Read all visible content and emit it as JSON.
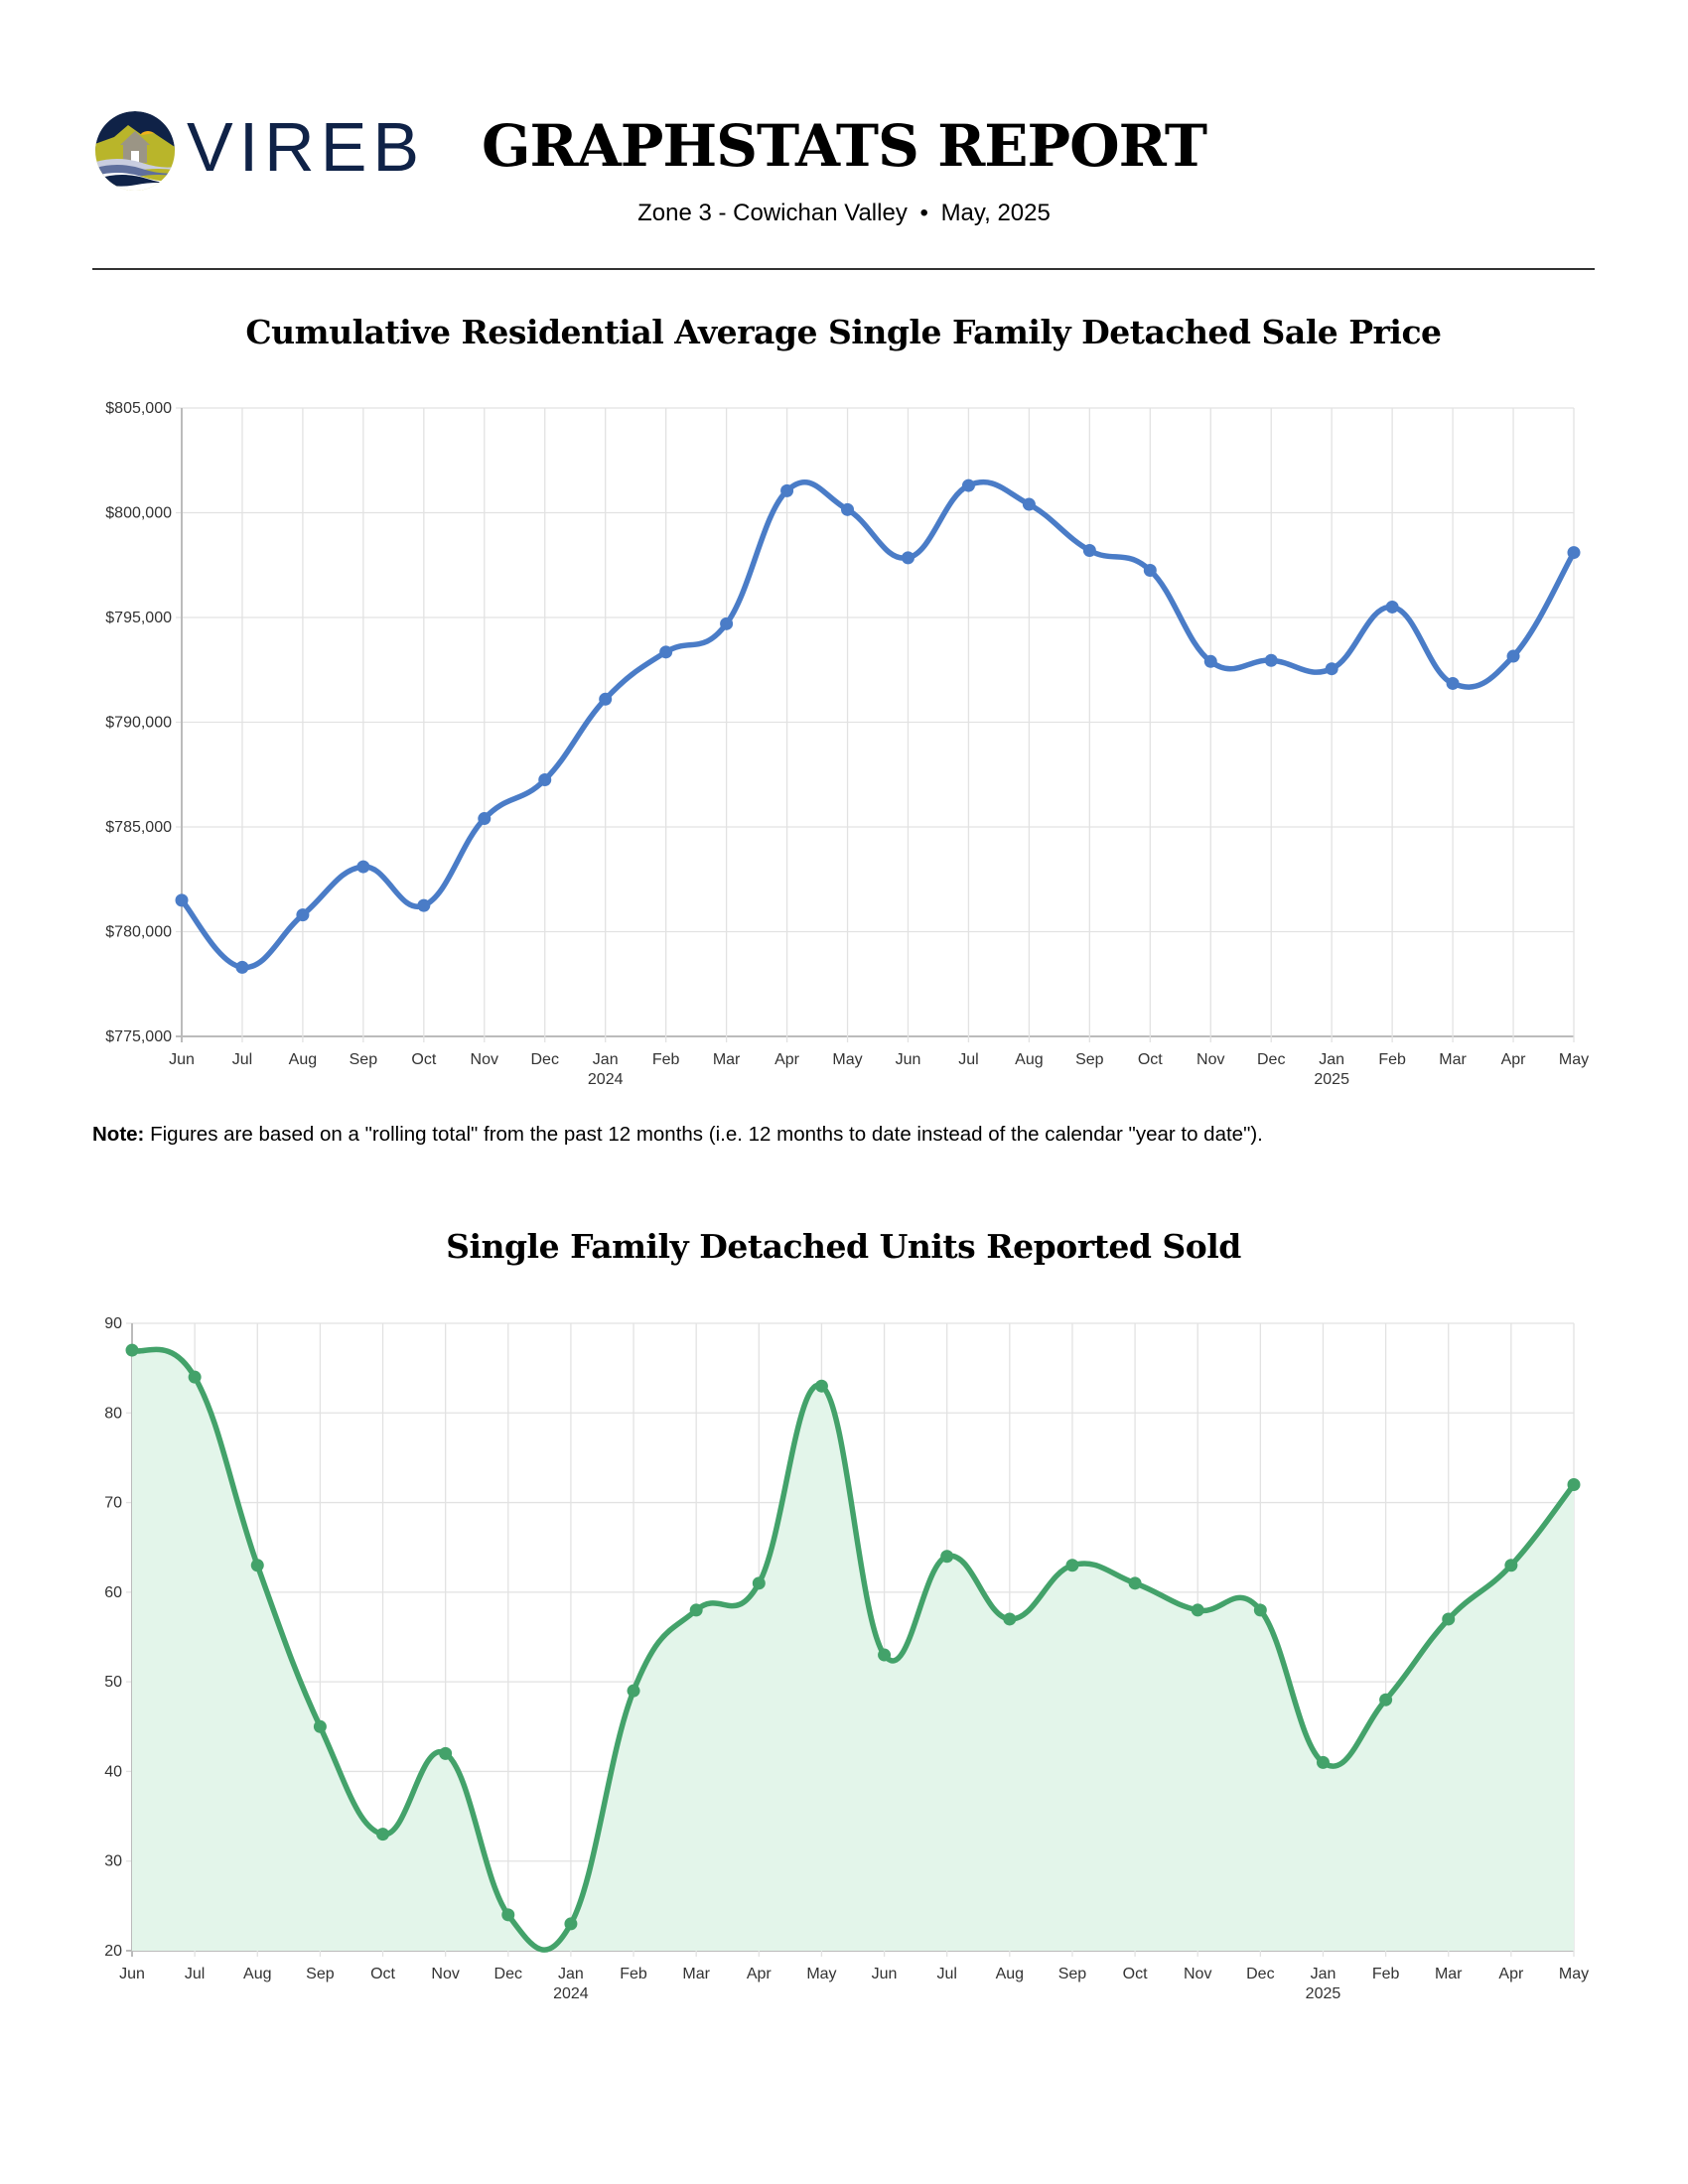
{
  "header": {
    "logo_text": "VIREB",
    "title": "GRAPHSTATS REPORT",
    "subtitle_zone": "Zone 3 - Cowichan Valley",
    "subtitle_sep": "•",
    "subtitle_date": "May, 2025"
  },
  "note": {
    "label": "Note:",
    "text": " Figures are based on a \"rolling total\" from the past 12 months (i.e. 12 months to date instead of the calendar \"year to date\")."
  },
  "colors": {
    "price_line": "#4a7cc7",
    "units_line": "#43a26a",
    "units_fill": "#e3f5ea",
    "grid": "#e2e2e2",
    "axis": "#bbbbbb"
  },
  "chart_data": [
    {
      "type": "line",
      "title": "Cumulative Residential Average Single Family Detached Sale Price",
      "xlabel": "",
      "ylabel": "",
      "x": [
        "Jun",
        "Jul",
        "Aug",
        "Sep",
        "Oct",
        "Nov",
        "Dec",
        "Jan",
        "Feb",
        "Mar",
        "Apr",
        "May",
        "Jun",
        "Jul",
        "Aug",
        "Sep",
        "Oct",
        "Nov",
        "Dec",
        "Jan",
        "Feb",
        "Mar",
        "Apr",
        "May"
      ],
      "x_year_labels": {
        "7": "2024",
        "19": "2025"
      },
      "series": [
        {
          "name": "Average Sale Price",
          "values": [
            781500,
            778300,
            780800,
            783100,
            781250,
            785400,
            787250,
            791100,
            793350,
            794700,
            801050,
            800150,
            797850,
            801300,
            800400,
            798200,
            797250,
            792900,
            792950,
            792550,
            795500,
            791850,
            793150,
            798100
          ]
        }
      ],
      "ylim": [
        775000,
        805000
      ],
      "yticks": [
        775000,
        780000,
        785000,
        790000,
        795000,
        800000,
        805000
      ],
      "ytick_labels": [
        "$775,000",
        "$780,000",
        "$785,000",
        "$790,000",
        "$795,000",
        "$800,000",
        "$805,000"
      ],
      "grid": true,
      "legend": "none"
    },
    {
      "type": "area",
      "title": "Single Family Detached Units Reported Sold",
      "xlabel": "",
      "ylabel": "",
      "x": [
        "Jun",
        "Jul",
        "Aug",
        "Sep",
        "Oct",
        "Nov",
        "Dec",
        "Jan",
        "Feb",
        "Mar",
        "Apr",
        "May",
        "Jun",
        "Jul",
        "Aug",
        "Sep",
        "Oct",
        "Nov",
        "Dec",
        "Jan",
        "Feb",
        "Mar",
        "Apr",
        "May"
      ],
      "x_year_labels": {
        "7": "2024",
        "19": "2025"
      },
      "series": [
        {
          "name": "Units Sold",
          "values": [
            87,
            84,
            63,
            45,
            33,
            42,
            24,
            23,
            49,
            58,
            61,
            83,
            53,
            64,
            57,
            63,
            61,
            58,
            58,
            41,
            48,
            57,
            63,
            72
          ]
        }
      ],
      "ylim": [
        20,
        90
      ],
      "yticks": [
        20,
        30,
        40,
        50,
        60,
        70,
        80,
        90
      ],
      "ytick_labels": [
        "20",
        "30",
        "40",
        "50",
        "60",
        "70",
        "80",
        "90"
      ],
      "grid": true,
      "legend": "none"
    }
  ]
}
